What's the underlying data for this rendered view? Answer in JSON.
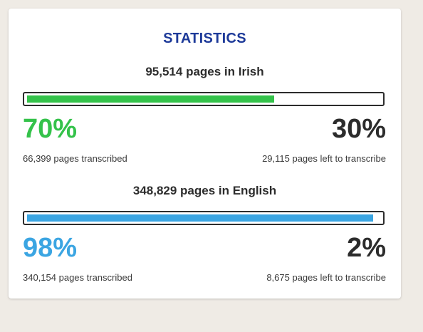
{
  "stats": {
    "title": "STATISTICS",
    "title_color": "#1d3a99",
    "sections": [
      {
        "heading": "95,514 pages in Irish",
        "progress": 0.7,
        "color": "#34c24a",
        "percent_done": "70%",
        "percent_left": "30%",
        "transcribed": "66,399 pages transcribed",
        "left": "29,115 pages left to transcribe"
      },
      {
        "heading": "348,829 pages in English",
        "progress": 0.98,
        "color": "#3ba5e2",
        "percent_done": "98%",
        "percent_left": "2%",
        "transcribed": "340,154 pages transcribed",
        "left": "8,675 pages left to transcribe"
      }
    ]
  }
}
